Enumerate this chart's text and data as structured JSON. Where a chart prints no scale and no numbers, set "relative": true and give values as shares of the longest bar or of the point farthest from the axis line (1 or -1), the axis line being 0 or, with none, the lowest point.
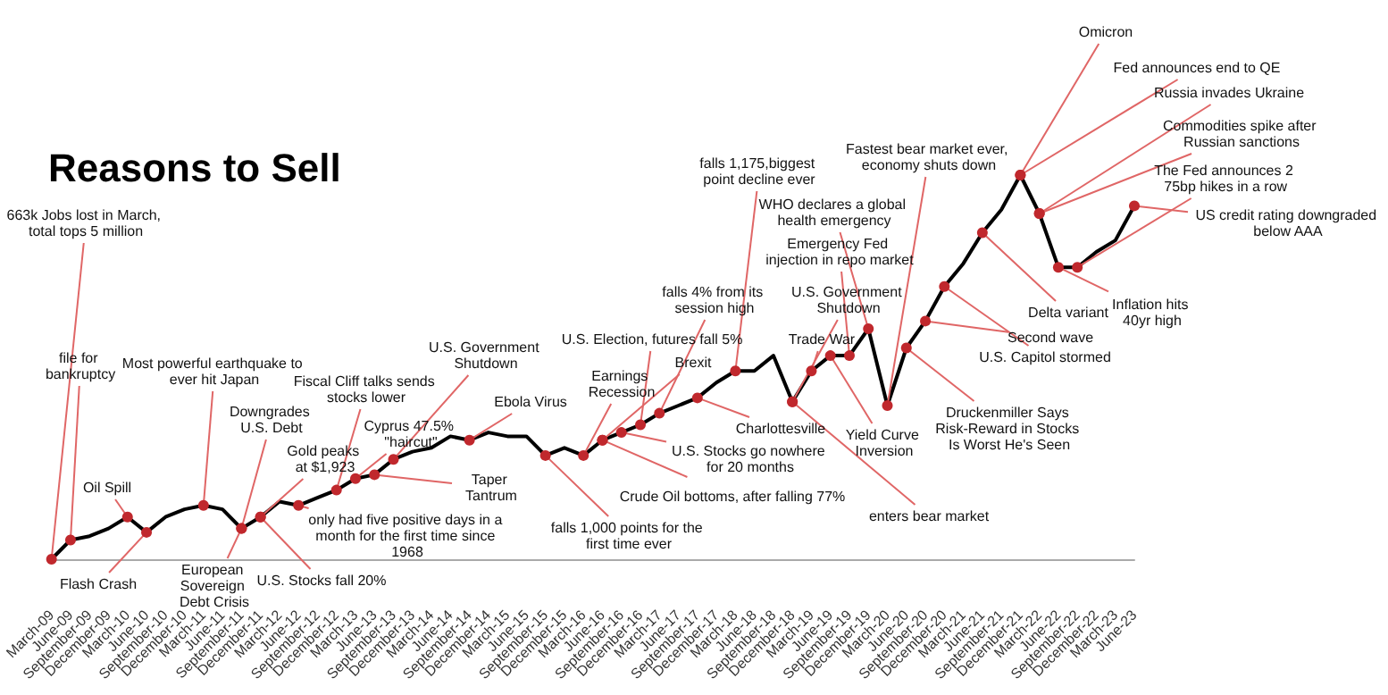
{
  "chart_data": {
    "type": "line",
    "title": "Reasons to Sell",
    "relative": true,
    "categories": [
      "March-09",
      "June-09",
      "September-09",
      "December-09",
      "March-10",
      "June-10",
      "September-10",
      "December-10",
      "March-11",
      "June-11",
      "September-11",
      "December-11",
      "March-12",
      "June-12",
      "September-12",
      "December-12",
      "March-13",
      "June-13",
      "September-13",
      "December-13",
      "March-14",
      "June-14",
      "September-14",
      "December-14",
      "March-15",
      "June-15",
      "September-15",
      "December-15",
      "March-16",
      "June-16",
      "September-16",
      "December-16",
      "March-17",
      "June-17",
      "September-17",
      "December-17",
      "March-18",
      "June-18",
      "September-18",
      "December-18",
      "March-19",
      "June-19",
      "September-19",
      "December-19",
      "March-20",
      "June-20",
      "September-20",
      "December-20",
      "March-21",
      "June-21",
      "September-21",
      "December-21",
      "March-22",
      "June-22",
      "September-22",
      "December-22",
      "March-23",
      "June-23"
    ],
    "series": [
      {
        "color": "#000000",
        "values": [
          0,
          0.05,
          0.06,
          0.08,
          0.11,
          0.07,
          0.11,
          0.13,
          0.14,
          0.13,
          0.08,
          0.11,
          0.15,
          0.14,
          0.16,
          0.18,
          0.21,
          0.22,
          0.26,
          0.28,
          0.29,
          0.32,
          0.31,
          0.33,
          0.32,
          0.32,
          0.27,
          0.29,
          0.27,
          0.31,
          0.33,
          0.35,
          0.38,
          0.4,
          0.42,
          0.46,
          0.49,
          0.49,
          0.53,
          0.41,
          0.49,
          0.53,
          0.53,
          0.6,
          0.4,
          0.55,
          0.62,
          0.71,
          0.77,
          0.85,
          0.91,
          1,
          0.9,
          0.76,
          0.76,
          0.8,
          0.83,
          0.92
        ]
      }
    ],
    "annotations": [
      {
        "text": "663k Jobs lost in March, total tops 5 million",
        "x": "March-09",
        "y": 0
      },
      {
        "text": "file for bankruptcy",
        "x": "June-09",
        "y": 0.05
      },
      {
        "text": "Oil Spill",
        "x": "March-10",
        "y": 0.11
      },
      {
        "text": "Flash Crash",
        "x": "June-10",
        "y": 0.07
      },
      {
        "text": "Most powerful earthquake to ever hit Japan",
        "x": "March-11",
        "y": 0.14
      },
      {
        "text": "Downgrades U.S. Debt",
        "x": "September-11",
        "y": 0.08
      },
      {
        "text": "European Sovereign Debt Crisis",
        "x": "September-11",
        "y": 0.08
      },
      {
        "text": "U.S. Stocks fall 20%",
        "x": "December-11",
        "y": 0.11
      },
      {
        "text": "Gold peaks at $1,923",
        "x": "December-11",
        "y": 0.11
      },
      {
        "text": "only had five positive days in a month for the first time since 1968",
        "x": "June-12",
        "y": 0.14
      },
      {
        "text": "Fiscal Cliff talks sends stocks lower",
        "x": "December-12",
        "y": 0.18
      },
      {
        "text": "Cyprus 47.5% \"haircut\"",
        "x": "March-13",
        "y": 0.21
      },
      {
        "text": "Taper Tantrum",
        "x": "June-13",
        "y": 0.22
      },
      {
        "text": "U.S. Government Shutdown",
        "x": "September-13",
        "y": 0.26
      },
      {
        "text": "Ebola Virus",
        "x": "September-14",
        "y": 0.31
      },
      {
        "text": "falls 1,000 points for the first time ever",
        "x": "September-15",
        "y": 0.27
      },
      {
        "text": "Earnings Recession",
        "x": "March-16",
        "y": 0.27
      },
      {
        "text": "Crude Oil bottoms, after falling 77%",
        "x": "June-16",
        "y": 0.31
      },
      {
        "text": "U.S. Election, futures fall 5%",
        "x": "December-16",
        "y": 0.35
      },
      {
        "text": "Brexit",
        "x": "June-16",
        "y": 0.31
      },
      {
        "text": "U.S. Stocks go nowhere for 20 months",
        "x": "September-16",
        "y": 0.33
      },
      {
        "text": "falls 4% from its session high",
        "x": "March-17",
        "y": 0.38
      },
      {
        "text": "Charlottesville",
        "x": "September-17",
        "y": 0.42
      },
      {
        "text": "falls 1,175,biggest point decline ever",
        "x": "March-18",
        "y": 0.49
      },
      {
        "text": "enters bear market",
        "x": "December-18",
        "y": 0.41
      },
      {
        "text": "Trade War",
        "x": "March-19",
        "y": 0.49
      },
      {
        "text": "Emergency Fed injection in repo market",
        "x": "September-19",
        "y": 0.53
      },
      {
        "text": "U.S. Government Shutdown",
        "x": "December-18",
        "y": 0.41
      },
      {
        "text": "Yield Curve Inversion",
        "x": "June-19",
        "y": 0.53
      },
      {
        "text": "WHO declares a global health emergency",
        "x": "December-19",
        "y": 0.6
      },
      {
        "text": "Fastest bear market ever, economy shuts down",
        "x": "March-20",
        "y": 0.4
      },
      {
        "text": "Druckenmiller Says Risk-Reward in Stocks Is Worst He's Seen",
        "x": "June-20",
        "y": 0.55
      },
      {
        "text": "U.S. Capitol stormed",
        "x": "December-20",
        "y": 0.71
      },
      {
        "text": "Second wave",
        "x": "September-20",
        "y": 0.62
      },
      {
        "text": "Delta variant",
        "x": "June-21",
        "y": 0.85
      },
      {
        "text": "Omicron",
        "x": "December-21",
        "y": 1
      },
      {
        "text": "Fed announces end to QE",
        "x": "December-21",
        "y": 1
      },
      {
        "text": "Russia invades Ukraine",
        "x": "March-22",
        "y": 0.9
      },
      {
        "text": "Commodities spike after Russian sanctions",
        "x": "March-22",
        "y": 0.9
      },
      {
        "text": "The Fed announces 2 75bp hikes in a row",
        "x": "September-22",
        "y": 0.76
      },
      {
        "text": "US credit rating downgraded below AAA",
        "x": "June-23",
        "y": 0.92
      },
      {
        "text": "Inflation hits 40yr high",
        "x": "June-22",
        "y": 0.76
      }
    ]
  }
}
